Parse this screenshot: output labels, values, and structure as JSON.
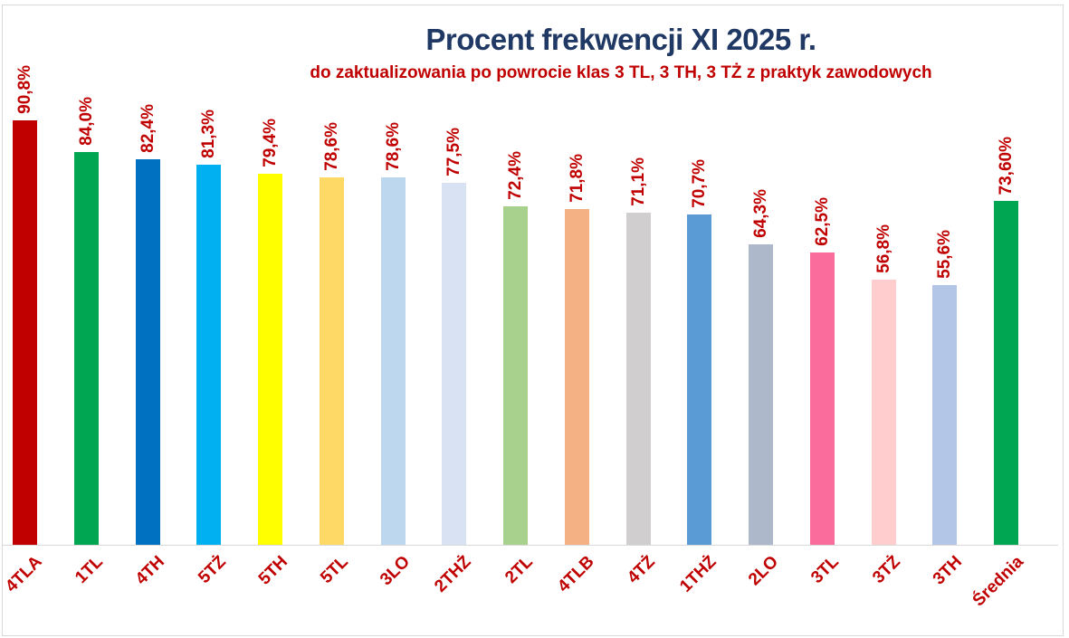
{
  "chart": {
    "title": "Procent frekwencji XI 2025 r.",
    "subtitle": "do zaktualizowania po powrocie klas 3 TL, 3 TH, 3 TŻ z praktyk zawodowych",
    "title_color": "#1F3864",
    "subtitle_color": "#C00000"
  },
  "chart_data": {
    "type": "bar",
    "title": "Procent frekwencji XI 2025 r.",
    "subtitle": "do zaktualizowania po powrocie klas 3 TL, 3 TH, 3 TŻ z praktyk zawodowych",
    "categories": [
      "4TLA",
      "1TL",
      "4TH",
      "5TŻ",
      "5TH",
      "5TL",
      "3LO",
      "2THŻ",
      "2TL",
      "4TLB",
      "4TŻ",
      "1THŻ",
      "2LO",
      "3TL",
      "3TŻ",
      "3TH",
      "Średnia"
    ],
    "values": [
      90.8,
      84.0,
      82.4,
      81.3,
      79.4,
      78.6,
      78.6,
      77.5,
      72.4,
      71.8,
      71.1,
      70.7,
      64.3,
      62.5,
      56.8,
      55.6,
      73.6
    ],
    "value_labels": [
      "90,8%",
      "84,0%",
      "82,4%",
      "81,3%",
      "79,4%",
      "78,6%",
      "78,6%",
      "77,5%",
      "72,4%",
      "71,8%",
      "71,1%",
      "70,7%",
      "64,3%",
      "62,5%",
      "56,8%",
      "55,6%",
      "73,60%"
    ],
    "bar_colors": [
      "#C00000",
      "#00A651",
      "#0070C0",
      "#00B0F0",
      "#FFFF00",
      "#FFD966",
      "#BDD7EE",
      "#D9E2F3",
      "#A9D18E",
      "#F4B183",
      "#D0CECE",
      "#5B9BD5",
      "#ADB9CA",
      "#F96C9C",
      "#FFCDCD",
      "#B4C6E7",
      "#00A651"
    ],
    "value_label_color": "#C00000",
    "category_label_color": "#C00000",
    "axis_line_color": "#D9D9D9",
    "ylim": [
      0,
      100
    ],
    "grid": false,
    "legend": false
  }
}
